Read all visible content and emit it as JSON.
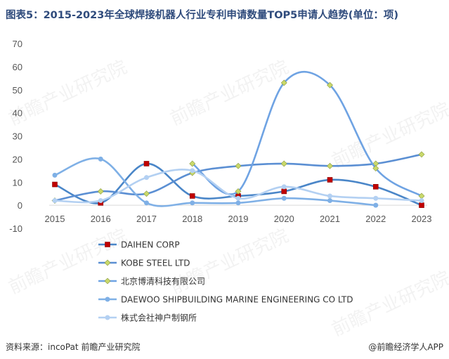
{
  "title": "图表5：2015-2023年全球焊接机器人行业专利申请数量TOP5申请人趋势(单位：项)",
  "source": "资料来源：incoPat 前瞻产业研究院",
  "brand": "@前瞻经济学人APP",
  "watermark": "前瞻产业研究院",
  "chart_data": {
    "type": "line",
    "smooth": true,
    "x": [
      "2015",
      "2016",
      "2017",
      "2018",
      "2019",
      "2020",
      "2021",
      "2022",
      "2023"
    ],
    "ylim": [
      -10,
      70
    ],
    "yticks": [
      -10,
      0,
      10,
      20,
      30,
      40,
      50,
      60,
      70
    ],
    "grid": false,
    "legend_position": "bottom-left",
    "series": [
      {
        "name": "DAIHEN CORP",
        "color": "#4a86c8",
        "marker": "square",
        "marker_color": "#c00000",
        "values": [
          9,
          1,
          18,
          4,
          4,
          6,
          11,
          8,
          0
        ]
      },
      {
        "name": "KOBE STEEL LTD",
        "color": "#5b8fd3",
        "marker": "diamond",
        "marker_color": "#c9d96a",
        "values": [
          2,
          6,
          5,
          14,
          17,
          18,
          17,
          18,
          22
        ]
      },
      {
        "name": "北京博清科技有限公司",
        "color": "#6fa3e3",
        "marker": "diamond",
        "marker_color": "#c9d96a",
        "values": [
          null,
          null,
          null,
          18,
          6,
          53,
          52,
          16,
          4
        ]
      },
      {
        "name": "DAEWOO SHIPBUILDING MARINE ENGINEERING CO LTD",
        "color": "#7fb0e6",
        "marker": "circle",
        "marker_color": "#7fb0e6",
        "values": [
          13,
          20,
          1,
          1,
          1,
          3,
          2,
          0,
          null
        ]
      },
      {
        "name": "株式会社神户制钢所",
        "color": "#b3d0f2",
        "marker": "circle",
        "marker_color": "#b3d0f2",
        "values": [
          2,
          2,
          12,
          15,
          3,
          8,
          4,
          3,
          2
        ]
      }
    ]
  }
}
